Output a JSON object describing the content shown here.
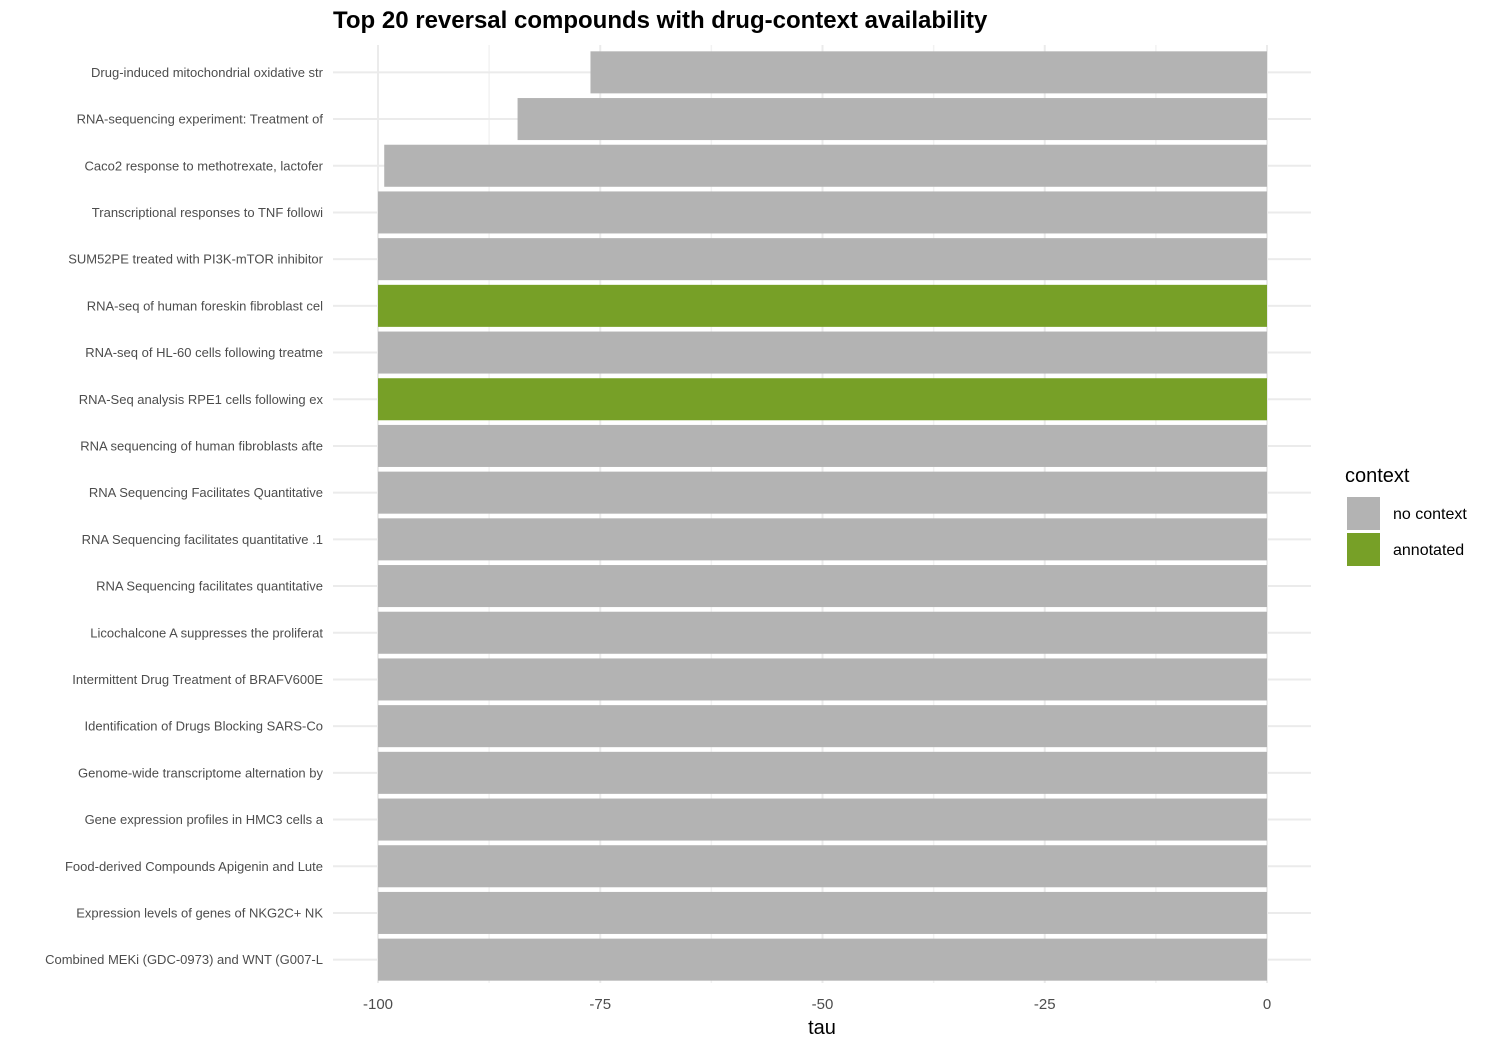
{
  "chart_data": {
    "type": "bar",
    "orientation": "horizontal",
    "title": "Top 20 reversal compounds with drug-context availability",
    "xlabel": "tau",
    "ylabel": "",
    "xlim": [
      -100,
      0
    ],
    "xticks": [
      -100,
      -75,
      -50,
      -25,
      0
    ],
    "xtick_labels": [
      "-100",
      "-75",
      "-50",
      "-25",
      "0"
    ],
    "grid": true,
    "legend": {
      "title": "context",
      "placement": "right",
      "entries": [
        {
          "label": "no context",
          "color": "#b3b3b3"
        },
        {
          "label": "annotated",
          "color": "#77a027"
        }
      ]
    },
    "categories": [
      "Drug-induced mitochondrial oxidative str",
      "RNA-sequencing experiment: Treatment of ",
      "Caco2 response to methotrexate, lactofer",
      "Transcriptional responses to TNF followi",
      "SUM52PE treated with PI3K-mTOR inhibitor",
      "RNA-seq of human foreskin fibroblast cel",
      "RNA-seq of HL-60 cells following treatme",
      "RNA-Seq analysis RPE1 cells following ex",
      "RNA sequencing of human fibroblasts afte",
      "RNA Sequencing Facilitates Quantitative ",
      "RNA Sequencing facilitates quantitative .1",
      "RNA Sequencing facilitates quantitative ",
      "Licochalcone A suppresses the proliferat",
      "Intermittent Drug Treatment of BRAFV600E",
      "Identification of Drugs Blocking SARS-Co",
      "Genome-wide transcriptome alternation by",
      "Gene expression profiles in HMC3 cells a",
      "Food-derived Compounds Apigenin and Lute",
      "Expression levels of genes of NKG2C+ NK ",
      "Combined MEKi (GDC-0973) and WNT (G007-L"
    ],
    "values": [
      -76.1,
      -84.3,
      -99.3,
      -100,
      -100,
      -100,
      -100,
      -100,
      -100,
      -100,
      -100,
      -100,
      -100,
      -100,
      -100,
      -100,
      -100,
      -100,
      -100,
      -100
    ],
    "context": [
      "no context",
      "no context",
      "no context",
      "no context",
      "no context",
      "annotated",
      "no context",
      "annotated",
      "no context",
      "no context",
      "no context",
      "no context",
      "no context",
      "no context",
      "no context",
      "no context",
      "no context",
      "no context",
      "no context",
      "no context"
    ]
  }
}
